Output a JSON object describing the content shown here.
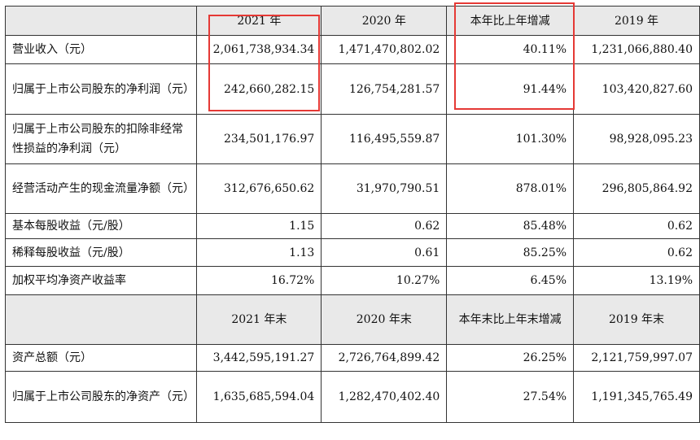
{
  "header": {
    "col1": "2021 年",
    "col2": "2020 年",
    "col3": "本年比上年增减",
    "col4": "2019 年"
  },
  "rows": [
    {
      "label": "营业收入（元）",
      "v2021": "2,061,738,934.34",
      "v2020": "1,471,470,802.02",
      "change": "40.11%",
      "v2019": "1,231,066,880.40"
    },
    {
      "label": "归属于上市公司股东的净利润（元）",
      "v2021": "242,660,282.15",
      "v2020": "126,754,281.57",
      "change": "91.44%",
      "v2019": "103,420,827.60"
    },
    {
      "label": "归属于上市公司股东的扣除非经常性损益的净利润（元）",
      "v2021": "234,501,176.97",
      "v2020": "116,495,559.87",
      "change": "101.30%",
      "v2019": "98,928,095.23"
    },
    {
      "label": "经营活动产生的现金流量净额（元）",
      "v2021": "312,676,650.62",
      "v2020": "31,970,790.51",
      "change": "878.01%",
      "v2019": "296,805,864.92"
    },
    {
      "label": "基本每股收益（元/股）",
      "v2021": "1.15",
      "v2020": "0.62",
      "change": "85.48%",
      "v2019": "0.62"
    },
    {
      "label": "稀释每股收益（元/股）",
      "v2021": "1.13",
      "v2020": "0.61",
      "change": "85.25%",
      "v2019": "0.62"
    },
    {
      "label": "加权平均净资产收益率",
      "v2021": "16.72%",
      "v2020": "10.27%",
      "change": "6.45%",
      "v2019": "13.19%"
    }
  ],
  "header2": {
    "col1": "2021 年末",
    "col2": "2020 年末",
    "col3": "本年末比上年末增减",
    "col4": "2019 年末"
  },
  "rows2": [
    {
      "label": "资产总额（元）",
      "v2021": "3,442,595,191.27",
      "v2020": "2,726,764,899.42",
      "change": "26.25%",
      "v2019": "2,121,759,997.07"
    },
    {
      "label": "归属于上市公司股东的净资产（元）",
      "v2021": "1,635,685,594.04",
      "v2020": "1,282,470,402.40",
      "change": "27.54%",
      "v2019": "1,191,345,765.49"
    }
  ],
  "highlight_color": "#e53935"
}
